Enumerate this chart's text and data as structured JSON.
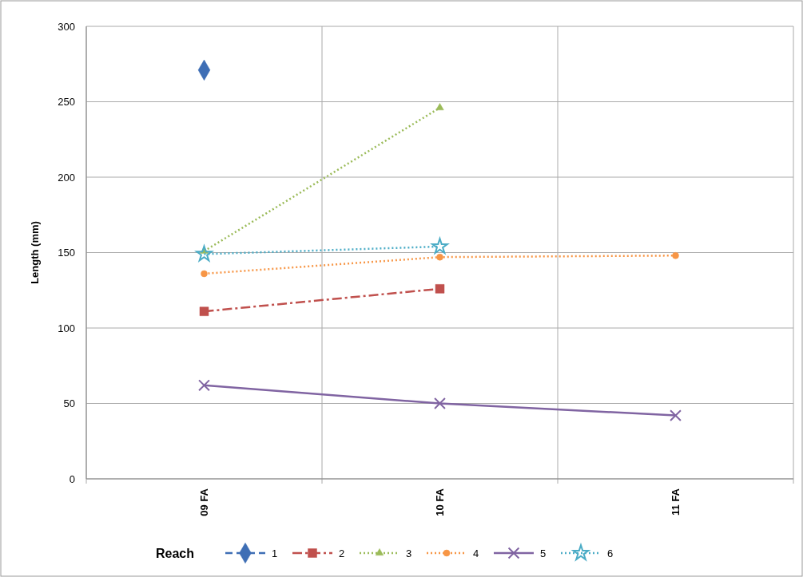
{
  "chart_data": {
    "type": "line",
    "ylabel": "Length (mm)",
    "legend_title": "Reach",
    "categories": [
      "09 FA",
      "10 FA",
      "11 FA"
    ],
    "ylim": [
      0,
      300
    ],
    "yticks": [
      0,
      50,
      100,
      150,
      200,
      250,
      300
    ],
    "grid": true,
    "legend": "bottom",
    "series": [
      {
        "name": "1",
        "color": "#3e6eb5",
        "marker": "diamond",
        "line_style": "dashed",
        "values": [
          271,
          null,
          null
        ]
      },
      {
        "name": "2",
        "color": "#c0504d",
        "marker": "square",
        "line_style": "dashdot",
        "values": [
          111,
          126,
          null
        ]
      },
      {
        "name": "3",
        "color": "#9bbb59",
        "marker": "triangle",
        "line_style": "dotted",
        "values": [
          151,
          246,
          null
        ]
      },
      {
        "name": "4",
        "color": "#f79646",
        "marker": "circle",
        "line_style": "dotted",
        "values": [
          136,
          147,
          148
        ]
      },
      {
        "name": "5",
        "color": "#8064a2",
        "marker": "cross",
        "line_style": "solid",
        "values": [
          62,
          50,
          42
        ]
      },
      {
        "name": "6",
        "color": "#4bacc6",
        "marker": "star",
        "line_style": "dotted",
        "values": [
          149,
          154,
          null
        ]
      }
    ]
  }
}
